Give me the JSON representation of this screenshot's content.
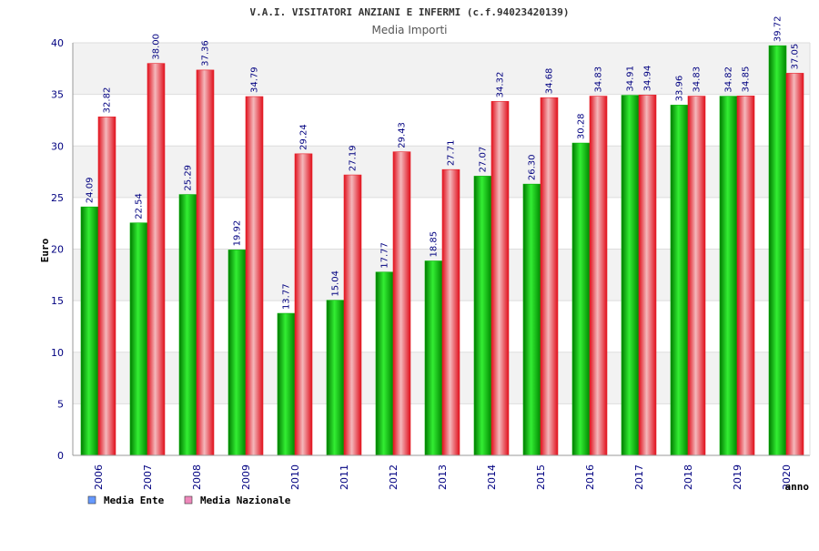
{
  "chart_data": {
    "type": "bar",
    "title": "V.A.I. VISITATORI ANZIANI E INFERMI (c.f.94023420139)",
    "subtitle": "Media Importi",
    "xlabel": "anno",
    "ylabel": "Euro",
    "ylim": [
      0,
      40
    ],
    "yticks": [
      "0",
      "5",
      "10",
      "15",
      "20",
      "25",
      "30",
      "35",
      "40"
    ],
    "grid": true,
    "legend_position": "bottom-left",
    "categories": [
      "2006",
      "2007",
      "2008",
      "2009",
      "2010",
      "2011",
      "2012",
      "2013",
      "2014",
      "2015",
      "2016",
      "2017",
      "2018",
      "2019",
      "2020"
    ],
    "series": [
      {
        "name": "Media Ente",
        "legend_color": "#6699ff",
        "bar_color": "#00b000",
        "values": [
          24.09,
          22.54,
          25.29,
          19.92,
          13.77,
          15.04,
          17.77,
          18.85,
          27.07,
          26.3,
          30.28,
          34.91,
          33.96,
          34.82,
          39.72
        ],
        "labels": [
          "24.09",
          "22.54",
          "25.29",
          "19.92",
          "13.77",
          "15.04",
          "17.77",
          "18.85",
          "27.07",
          "26.30",
          "30.28",
          "34.91",
          "33.96",
          "34.82",
          "39.72"
        ]
      },
      {
        "name": "Media Nazionale",
        "legend_color": "#ee88bb",
        "bar_color": "#e8202a",
        "values": [
          32.82,
          38.0,
          37.36,
          34.79,
          29.24,
          27.19,
          29.43,
          27.71,
          34.32,
          34.68,
          34.83,
          34.94,
          34.83,
          34.85,
          37.05
        ],
        "labels": [
          "32.82",
          "38.00",
          "37.36",
          "34.79",
          "29.24",
          "27.19",
          "29.43",
          "27.71",
          "34.32",
          "34.68",
          "34.83",
          "34.94",
          "34.83",
          "34.85",
          "37.05"
        ]
      }
    ]
  }
}
